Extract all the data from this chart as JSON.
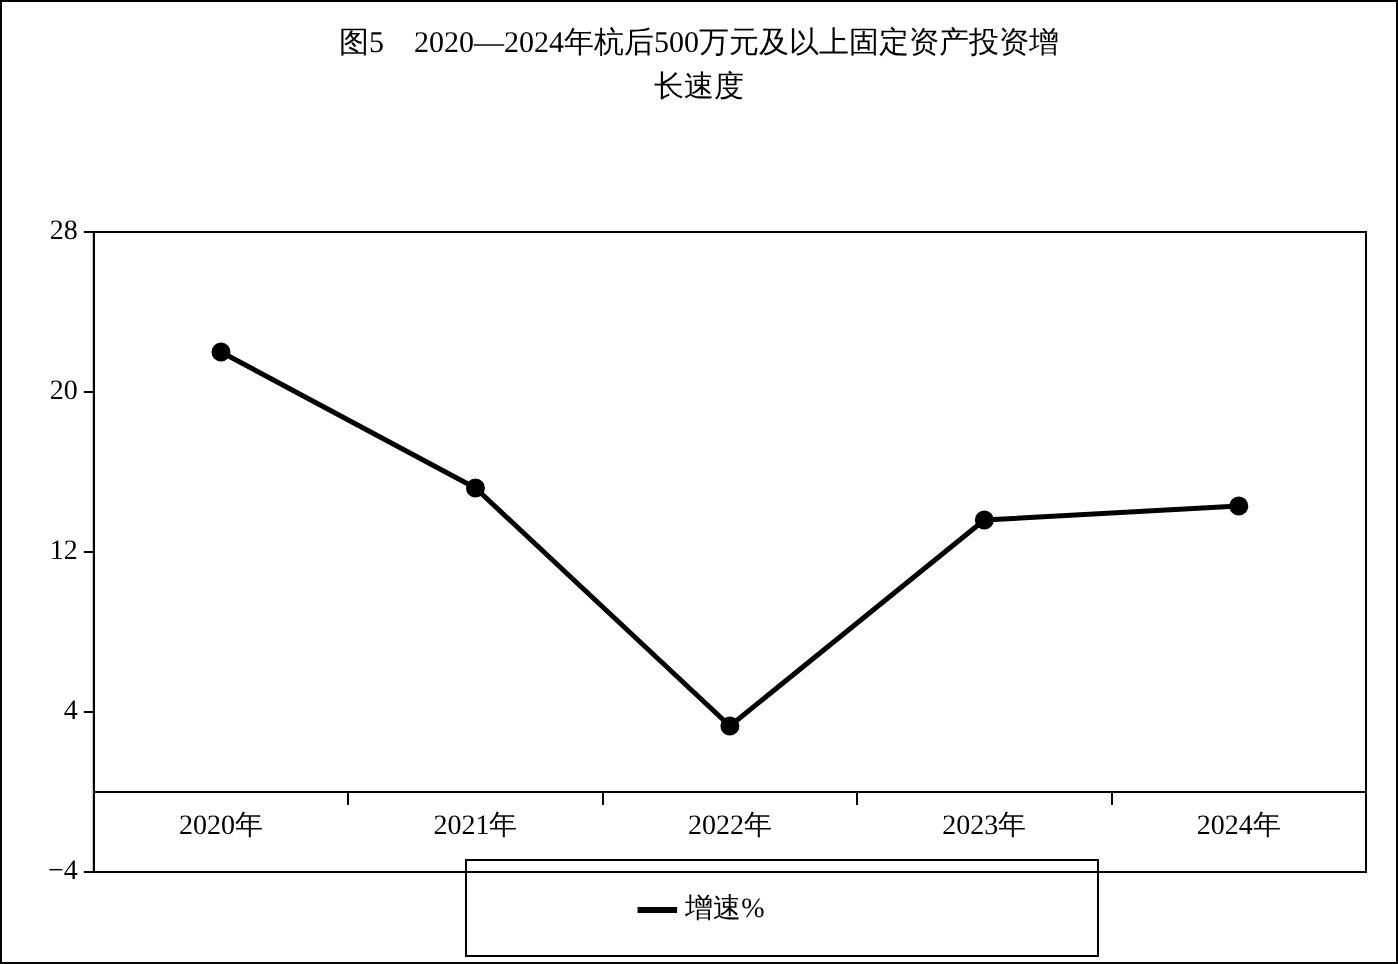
{
  "chart_data": {
    "type": "line",
    "title": "图5　2020—2024年杭后500万元及以上固定资产投资增长速度",
    "categories": [
      "2020年",
      "2021年",
      "2022年",
      "2023年",
      "2024年"
    ],
    "series": [
      {
        "name": "增速%",
        "color": "#000000",
        "values": [
          22.0,
          15.2,
          3.3,
          13.6,
          14.3
        ]
      }
    ],
    "ylim": [
      -4,
      28
    ],
    "yticks": [
      -4,
      4,
      12,
      20,
      28
    ],
    "grid": false,
    "legend": "bottom",
    "marker": "circle",
    "line_style": "solid"
  }
}
